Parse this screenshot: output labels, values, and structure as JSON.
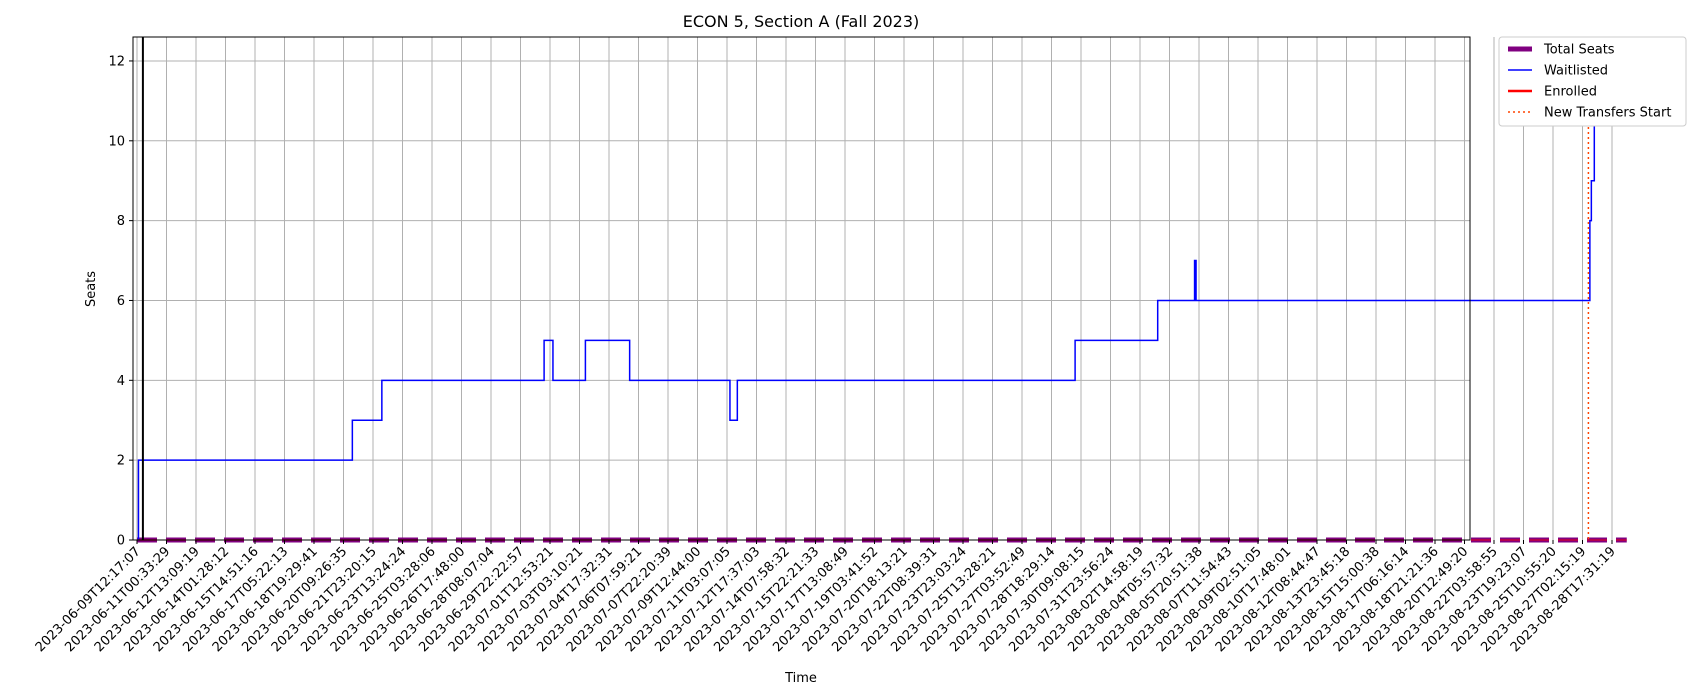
{
  "chart_data": {
    "type": "line",
    "title": "ECON 5, Section A (Fall 2023)",
    "xlabel": "Time",
    "ylabel": "Seats",
    "ylim": [
      0,
      12.6
    ],
    "yticks": [
      0,
      2,
      4,
      6,
      8,
      10,
      12
    ],
    "grid": true,
    "legend_position": "outside-top-right",
    "x_tick_labels": [
      "2023-06-09T12:17:07",
      "2023-06-11T00:33:29",
      "2023-06-12T13:09:19",
      "2023-06-14T01:28:12",
      "2023-06-15T14:51:16",
      "2023-06-17T05:22:13",
      "2023-06-18T19:29:41",
      "2023-06-20T09:26:35",
      "2023-06-21T23:20:15",
      "2023-06-23T13:24:24",
      "2023-06-25T03:28:06",
      "2023-06-26T17:48:00",
      "2023-06-28T08:07:04",
      "2023-06-29T22:22:57",
      "2023-07-01T12:53:21",
      "2023-07-03T03:10:21",
      "2023-07-04T17:32:31",
      "2023-07-06T07:59:21",
      "2023-07-07T22:20:39",
      "2023-07-09T12:44:00",
      "2023-07-11T03:07:05",
      "2023-07-12T17:37:03",
      "2023-07-14T07:58:32",
      "2023-07-15T22:21:33",
      "2023-07-17T13:08:49",
      "2023-07-19T03:41:52",
      "2023-07-20T18:13:21",
      "2023-07-22T08:39:31",
      "2023-07-23T23:03:24",
      "2023-07-25T13:28:21",
      "2023-07-27T03:52:49",
      "2023-07-28T18:29:14",
      "2023-07-30T09:08:15",
      "2023-07-31T23:56:24",
      "2023-08-02T14:58:19",
      "2023-08-04T05:57:32",
      "2023-08-05T20:51:38",
      "2023-08-07T11:54:43",
      "2023-08-09T02:51:05",
      "2023-08-10T17:48:01",
      "2023-08-12T08:44:47",
      "2023-08-13T23:45:18",
      "2023-08-15T15:00:38",
      "2023-08-17T06:16:14",
      "2023-08-18T21:21:36",
      "2023-08-20T12:49:20",
      "2023-08-22T03:58:55",
      "2023-08-23T19:23:07",
      "2023-08-25T10:55:20",
      "2023-08-27T02:15:19",
      "2023-08-28T17:31:19"
    ],
    "series": [
      {
        "name": "Total Seats",
        "color": "#800080",
        "style": "thick-dashed",
        "steps": [
          [
            0,
            0
          ],
          [
            50.5,
            0
          ]
        ]
      },
      {
        "name": "Waitlisted",
        "color": "#0000ff",
        "style": "step",
        "steps": [
          [
            0,
            0
          ],
          [
            0.05,
            2
          ],
          [
            7.3,
            3
          ],
          [
            8.3,
            4
          ],
          [
            13.8,
            5
          ],
          [
            14.1,
            4
          ],
          [
            15.2,
            5
          ],
          [
            16.7,
            4
          ],
          [
            20.1,
            3
          ],
          [
            20.35,
            4
          ],
          [
            31.8,
            5
          ],
          [
            34.6,
            6
          ],
          [
            35.85,
            7
          ],
          [
            35.9,
            6
          ],
          [
            49.25,
            8
          ],
          [
            49.3,
            9
          ],
          [
            49.4,
            12
          ],
          [
            49.5,
            11
          ],
          [
            49.55,
            12
          ],
          [
            49.6,
            12
          ]
        ]
      },
      {
        "name": "Enrolled",
        "color": "#ff0000",
        "style": "solid",
        "steps": [
          [
            0,
            0
          ],
          [
            50.5,
            0
          ]
        ]
      }
    ],
    "vlines": [
      {
        "name": "New Transfers Start",
        "x": 49.2,
        "color": "#ff4500",
        "style": "dotted",
        "legend": true
      },
      {
        "name": "",
        "x": 0.2,
        "color": "#000000",
        "style": "solid",
        "legend": false
      }
    ]
  }
}
